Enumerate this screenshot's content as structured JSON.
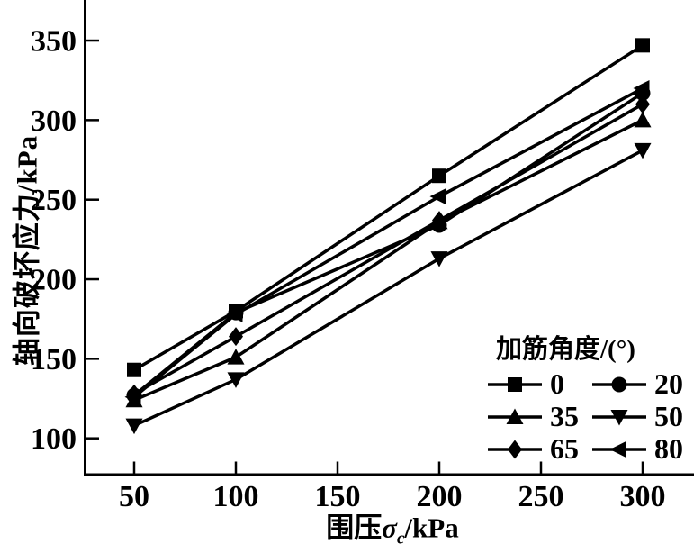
{
  "chart_data": {
    "type": "line",
    "title": "",
    "xlabel": {
      "prefix": "围压",
      "symbol": "σ",
      "subscript": "c",
      "suffix": "/kPa"
    },
    "ylabel": "轴向破坏应力/kPa",
    "x": [
      50,
      100,
      200,
      300
    ],
    "x_ticks": [
      50,
      100,
      150,
      200,
      250,
      300
    ],
    "y_ticks": [
      100,
      150,
      200,
      250,
      300,
      350
    ],
    "xlim": [
      25,
      325
    ],
    "ylim": [
      77,
      375
    ],
    "grid": false,
    "legend": {
      "title": "加筋角度/(°)",
      "position": "lower-right",
      "columns": 2
    },
    "series": [
      {
        "name": "0",
        "marker": "square",
        "values": [
          143,
          180,
          265,
          347
        ]
      },
      {
        "name": "20",
        "marker": "circle",
        "values": [
          127,
          179,
          234,
          317
        ]
      },
      {
        "name": "35",
        "marker": "triangle-up",
        "values": [
          124,
          151,
          236,
          300
        ]
      },
      {
        "name": "50",
        "marker": "triangle-down",
        "values": [
          108,
          137,
          213,
          281
        ]
      },
      {
        "name": "65",
        "marker": "diamond",
        "values": [
          128,
          164,
          237,
          310
        ]
      },
      {
        "name": "80",
        "marker": "triangle-left",
        "values": [
          126,
          178,
          252,
          320
        ]
      }
    ],
    "colors": {
      "line": "#000000",
      "background": "#ffffff",
      "text": "#000000"
    }
  }
}
